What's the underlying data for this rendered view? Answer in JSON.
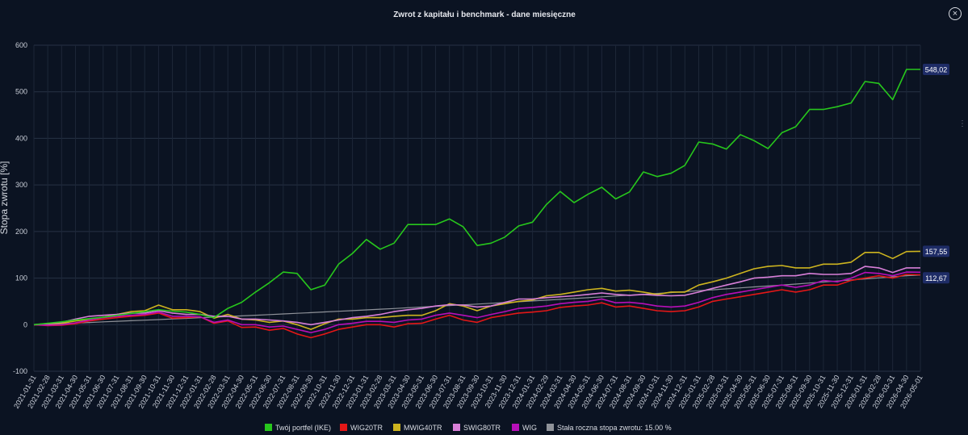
{
  "window": {
    "close_icon": "close-circle-icon",
    "side_icon": "menu-icon"
  },
  "chart_data": {
    "type": "line",
    "title": "Zwrot z kapitału i benchmark - dane miesięczne",
    "xlabel": "",
    "ylabel": "Stopa zwrotu [%]",
    "ylim": [
      -100,
      600
    ],
    "yticks": [
      -100,
      0,
      100,
      200,
      300,
      400,
      500,
      600
    ],
    "grid": true,
    "legend_position": "bottom",
    "x": [
      "2021-01-31",
      "2021-02-28",
      "2021-03-31",
      "2021-04-30",
      "2021-05-31",
      "2021-06-30",
      "2021-07-31",
      "2021-08-31",
      "2021-09-30",
      "2021-10-31",
      "2021-11-30",
      "2021-12-31",
      "2022-01-31",
      "2022-02-28",
      "2022-03-31",
      "2022-04-30",
      "2022-05-31",
      "2022-06-30",
      "2022-07-31",
      "2022-08-31",
      "2022-09-30",
      "2022-10-31",
      "2022-11-30",
      "2022-12-31",
      "2023-01-31",
      "2023-02-28",
      "2023-03-31",
      "2023-04-30",
      "2023-05-31",
      "2023-06-30",
      "2023-07-31",
      "2023-08-31",
      "2023-09-30",
      "2023-10-31",
      "2023-11-30",
      "2023-12-31",
      "2024-01-31",
      "2024-02-29",
      "2024-03-31",
      "2024-04-30",
      "2024-05-31",
      "2024-06-30",
      "2024-07-31",
      "2024-08-31",
      "2024-09-30",
      "2024-10-31",
      "2024-11-30",
      "2024-12-31",
      "2025-01-31",
      "2025-02-28",
      "2025-03-31",
      "2025-04-30",
      "2025-05-31",
      "2025-06-30",
      "2025-07-31",
      "2025-08-31",
      "2025-09-30",
      "2025-10-31",
      "2025-11-30",
      "2025-12-31",
      "2026-01-31",
      "2026-02-28",
      "2026-03-31",
      "2026-04-30",
      "2026-05-01"
    ],
    "series": [
      {
        "name": "Stała roczna stopa zwrotu: 15.00 %",
        "color": "#8f9299",
        "values": [
          0,
          1.2,
          2.3,
          3.5,
          4.7,
          6.0,
          7.2,
          8.4,
          9.7,
          10.9,
          12.2,
          13.5,
          14.8,
          16.1,
          17.5,
          18.8,
          20.2,
          21.6,
          23.0,
          24.4,
          25.8,
          27.3,
          28.7,
          30.2,
          31.7,
          33.2,
          34.7,
          36.3,
          37.8,
          39.4,
          41.0,
          42.6,
          44.2,
          45.9,
          47.5,
          49.2,
          50.9,
          52.6,
          54.4,
          56.1,
          57.9,
          59.7,
          61.5,
          63.4,
          65.2,
          67.1,
          69.0,
          71.0,
          72.9,
          74.9,
          76.9,
          78.9,
          81.0,
          83.0,
          85.1,
          87.2,
          89.4,
          91.6,
          93.7,
          96.0,
          98.2,
          100.5,
          102.8,
          105.1,
          106.5
        ]
      },
      {
        "name": "WIG20TR",
        "color": "#e31717",
        "values": [
          0,
          -2,
          -1,
          2,
          8,
          12,
          15,
          18,
          20,
          25,
          14,
          15,
          17,
          3,
          8,
          -6,
          -5,
          -12,
          -8,
          -20,
          -28,
          -20,
          -10,
          -5,
          0,
          0,
          -5,
          2,
          3,
          12,
          20,
          10,
          5,
          15,
          20,
          25,
          27,
          30,
          37,
          40,
          42,
          47,
          38,
          40,
          35,
          30,
          28,
          30,
          38,
          50,
          55,
          60,
          65,
          70,
          75,
          70,
          75,
          85,
          85,
          95,
          100,
          105,
          100,
          108,
          107
        ]
      },
      {
        "name": "MWIG40TR",
        "color": "#cdb41f",
        "values": [
          0,
          0,
          3,
          8,
          12,
          16,
          22,
          28,
          30,
          42,
          32,
          32,
          28,
          14,
          22,
          12,
          10,
          5,
          8,
          0,
          -10,
          2,
          12,
          12,
          15,
          15,
          18,
          20,
          20,
          30,
          45,
          40,
          30,
          40,
          45,
          50,
          53,
          62,
          65,
          70,
          75,
          78,
          72,
          74,
          70,
          65,
          70,
          70,
          85,
          92,
          100,
          110,
          120,
          125,
          127,
          122,
          122,
          130,
          130,
          134,
          155,
          155,
          142,
          157,
          157.55
        ]
      },
      {
        "name": "SWIG80TR",
        "color": "#d87fd8",
        "values": [
          0,
          2,
          5,
          12,
          18,
          20,
          22,
          25,
          25,
          30,
          25,
          22,
          22,
          18,
          18,
          12,
          12,
          10,
          8,
          5,
          0,
          5,
          10,
          15,
          18,
          22,
          28,
          32,
          35,
          40,
          43,
          42,
          38,
          40,
          48,
          55,
          55,
          58,
          60,
          62,
          65,
          68,
          65,
          63,
          65,
          63,
          62,
          63,
          70,
          78,
          85,
          92,
          100,
          102,
          105,
          105,
          110,
          108,
          108,
          110,
          125,
          122,
          112,
          122,
          122
        ]
      },
      {
        "name": "WIG",
        "color": "#b70fb8",
        "values": [
          0,
          -1,
          0,
          4,
          10,
          15,
          18,
          20,
          22,
          27,
          18,
          18,
          17,
          5,
          10,
          0,
          0,
          -5,
          -3,
          -10,
          -17,
          -10,
          0,
          3,
          7,
          7,
          5,
          10,
          12,
          20,
          25,
          20,
          15,
          22,
          28,
          35,
          37,
          40,
          45,
          48,
          50,
          55,
          47,
          48,
          45,
          40,
          38,
          40,
          48,
          58,
          65,
          70,
          75,
          80,
          85,
          80,
          85,
          95,
          92,
          100,
          112,
          110,
          105,
          113,
          112.67
        ]
      },
      {
        "name": "Twój portfel (IKE)",
        "color": "#27c71c",
        "values": [
          0,
          3,
          6,
          10,
          13,
          16,
          20,
          24,
          28,
          32,
          29,
          27,
          22,
          15,
          35,
          48,
          70,
          90,
          113,
          110,
          75,
          85,
          130,
          153,
          183,
          162,
          175,
          215,
          215,
          215,
          227,
          210,
          170,
          175,
          188,
          212,
          220,
          258,
          286,
          262,
          280,
          295,
          270,
          285,
          328,
          318,
          325,
          342,
          392,
          388,
          377,
          408,
          395,
          378,
          412,
          425,
          462,
          462,
          468,
          476,
          522,
          518,
          483,
          548,
          548.02
        ]
      }
    ],
    "end_labels": [
      "548,02",
      "157,55",
      "112,67"
    ]
  },
  "legend": [
    {
      "label": "Twój portfel (IKE)",
      "color": "#27c71c"
    },
    {
      "label": "WIG20TR",
      "color": "#e31717"
    },
    {
      "label": "MWIG40TR",
      "color": "#cdb41f"
    },
    {
      "label": "SWIG80TR",
      "color": "#d87fd8"
    },
    {
      "label": "WIG",
      "color": "#b70fb8"
    },
    {
      "label": "Stała roczna stopa zwrotu: 15.00 %",
      "color": "#8f9299"
    }
  ]
}
